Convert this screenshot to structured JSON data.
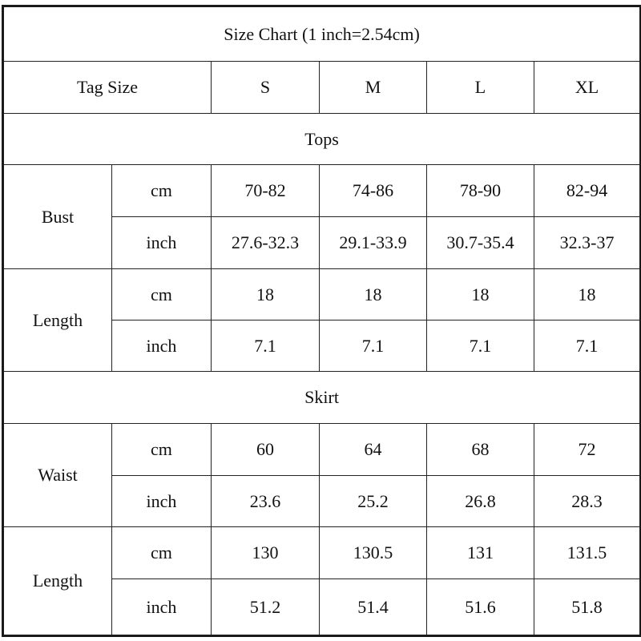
{
  "title": "Size Chart (1 inch=2.54cm)",
  "header": {
    "label": "Tag Size",
    "sizes": [
      "S",
      "M",
      "L",
      "XL"
    ]
  },
  "sections": [
    {
      "name": "Tops",
      "measures": [
        {
          "name": "Bust",
          "rows": [
            {
              "unit": "cm",
              "values": [
                "70-82",
                "74-86",
                "78-90",
                "82-94"
              ]
            },
            {
              "unit": "inch",
              "values": [
                "27.6-32.3",
                "29.1-33.9",
                "30.7-35.4",
                "32.3-37"
              ]
            }
          ]
        },
        {
          "name": "Length",
          "rows": [
            {
              "unit": "cm",
              "values": [
                "18",
                "18",
                "18",
                "18"
              ]
            },
            {
              "unit": "inch",
              "values": [
                "7.1",
                "7.1",
                "7.1",
                "7.1"
              ]
            }
          ]
        }
      ]
    },
    {
      "name": "Skirt",
      "measures": [
        {
          "name": "Waist",
          "rows": [
            {
              "unit": "cm",
              "values": [
                "60",
                "64",
                "68",
                "72"
              ]
            },
            {
              "unit": "inch",
              "values": [
                "23.6",
                "25.2",
                "26.8",
                "28.3"
              ]
            }
          ]
        },
        {
          "name": "Length",
          "rows": [
            {
              "unit": "cm",
              "values": [
                "130",
                "130.5",
                "131",
                "131.5"
              ]
            },
            {
              "unit": "inch",
              "values": [
                "51.2",
                "51.4",
                "51.6",
                "51.8"
              ]
            }
          ]
        }
      ]
    }
  ]
}
